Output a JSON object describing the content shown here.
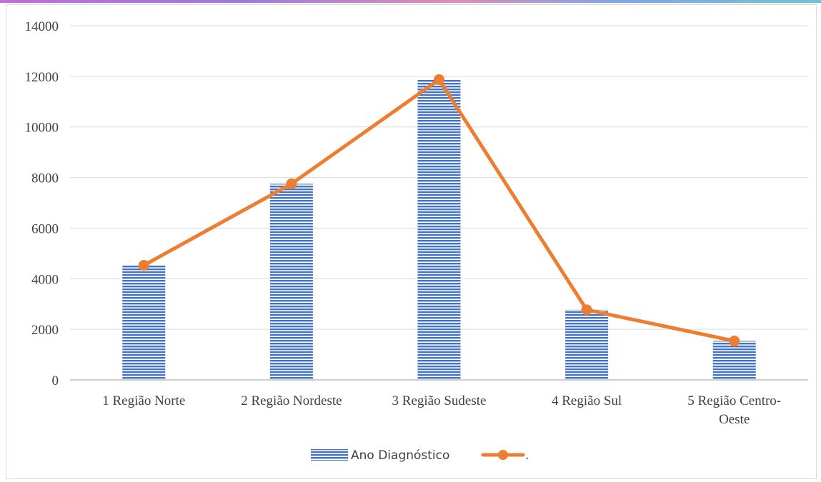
{
  "chart_data": {
    "type": "bar",
    "categories": [
      [
        "1 Região Norte"
      ],
      [
        "2 Região Nordeste"
      ],
      [
        "3 Região Sudeste"
      ],
      [
        "4 Região Sul"
      ],
      [
        "5 Região Centro-",
        "Oeste"
      ]
    ],
    "series": [
      {
        "name": "Ano Diagnóstico",
        "type": "bar",
        "values": [
          4530,
          7750,
          11870,
          2770,
          1540
        ],
        "color": "#4472c4"
      },
      {
        "name": ".",
        "type": "line",
        "values": [
          4530,
          7750,
          11870,
          2770,
          1540
        ],
        "color": "#ed7d31"
      }
    ],
    "ylim": [
      0,
      14000
    ],
    "yticks": [
      0,
      2000,
      4000,
      6000,
      8000,
      10000,
      12000,
      14000
    ],
    "grid": true,
    "legend_position": "bottom"
  }
}
